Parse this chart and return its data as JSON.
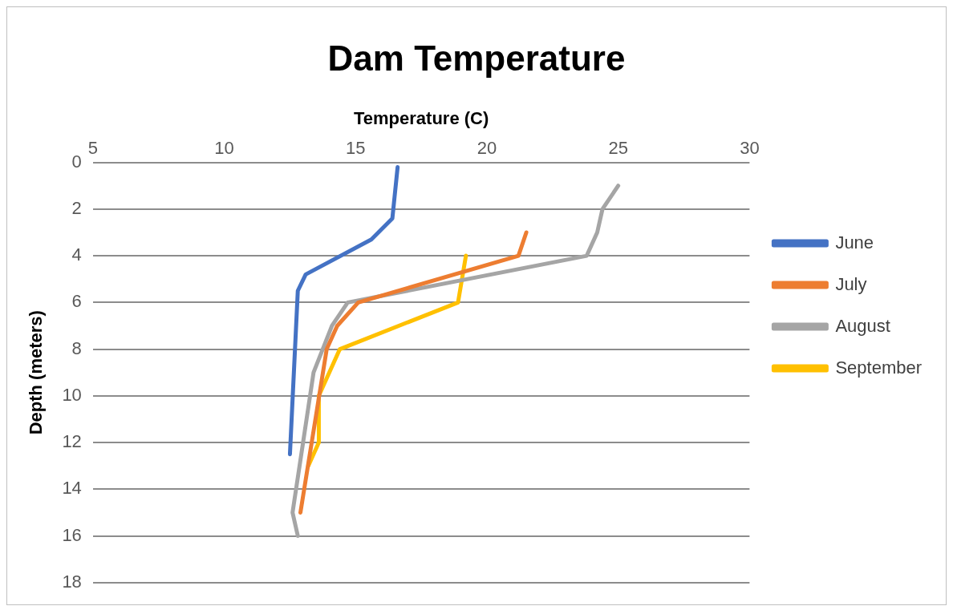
{
  "chart_data": {
    "type": "line",
    "title": "Dam Temperature",
    "xlabel": "Temperature (C)",
    "ylabel": "Depth (meters)",
    "xlim": [
      5,
      30
    ],
    "xticks": [
      5,
      10,
      15,
      20,
      25,
      30
    ],
    "ylim": [
      18,
      0
    ],
    "yticks": [
      0,
      2,
      4,
      6,
      8,
      10,
      12,
      14,
      16,
      18
    ],
    "grid": "y",
    "legend": "right",
    "marker": "none",
    "line_style": "solid",
    "series": [
      {
        "name": "June",
        "color": "#4472c4",
        "x": [
          16.6,
          16.4,
          15.6,
          13.1,
          12.8,
          12.5
        ],
        "values": [
          0.2,
          2.4,
          3.3,
          4.8,
          5.5,
          12.5
        ]
      },
      {
        "name": "July",
        "color": "#ed7d31",
        "x": [
          21.5,
          21.2,
          15.1,
          14.3,
          13.9,
          12.9
        ],
        "values": [
          3,
          4,
          6,
          7,
          8,
          15
        ]
      },
      {
        "name": "August",
        "color": "#a5a5a5",
        "x": [
          25,
          24.4,
          24.2,
          23.8,
          14.7,
          14.1,
          13.4,
          13,
          12.6,
          12.8
        ],
        "values": [
          1,
          2,
          3,
          4,
          6,
          7,
          9,
          12,
          15,
          16
        ]
      },
      {
        "name": "September",
        "color": "#ffc000",
        "x": [
          19.2,
          18.9,
          14.4,
          13.6,
          13.6,
          13.2
        ],
        "values": [
          4,
          6,
          8,
          10,
          12,
          13
        ]
      }
    ]
  }
}
